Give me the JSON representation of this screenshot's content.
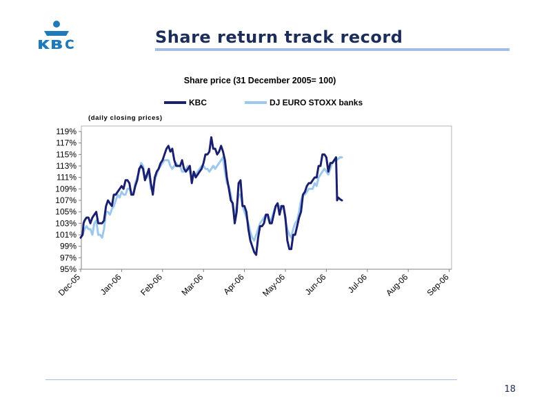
{
  "slide": {
    "title": "Share return track record",
    "page_number": "18",
    "logo_text": "KBC",
    "colors": {
      "title": "#1c2d5a",
      "rule": "#a3bde3",
      "logo": "#1e7ab8"
    }
  },
  "chart_data": {
    "type": "line",
    "title": "Share price (31 December 2005= 100)",
    "subtitle": "(daily closing prices)",
    "xlabel": "",
    "ylabel": "",
    "ylim": [
      95,
      119
    ],
    "y_ticks": [
      "95%",
      "97%",
      "99%",
      "101%",
      "103%",
      "105%",
      "107%",
      "109%",
      "111%",
      "113%",
      "115%",
      "117%",
      "119%"
    ],
    "x_ticks": [
      "Dec-05",
      "Jan-06",
      "Feb-06",
      "Mar-06",
      "Apr-06",
      "May-06",
      "Jun-06",
      "Jul-06",
      "Aug-06",
      "Sep-06"
    ],
    "legend_position": "top",
    "grid": false,
    "series": [
      {
        "name": "KBC",
        "color": "#1a1f6e",
        "points": [
          [
            0,
            100.5
          ],
          [
            1,
            101
          ],
          [
            1.5,
            103
          ],
          [
            2,
            103.5
          ],
          [
            3,
            104
          ],
          [
            4,
            104
          ],
          [
            5,
            103
          ],
          [
            6,
            104
          ],
          [
            7,
            104.5
          ],
          [
            8,
            105
          ],
          [
            9,
            103
          ],
          [
            10,
            103
          ],
          [
            11,
            103
          ],
          [
            12,
            103.5
          ],
          [
            13,
            106
          ],
          [
            14,
            107
          ],
          [
            15,
            106.5
          ],
          [
            16,
            106
          ],
          [
            17,
            108
          ],
          [
            18,
            108
          ],
          [
            19,
            108.5
          ],
          [
            20,
            109
          ],
          [
            21,
            109.5
          ],
          [
            22,
            109
          ],
          [
            23,
            110.5
          ],
          [
            24,
            110.5
          ],
          [
            25,
            110
          ],
          [
            26,
            108
          ],
          [
            27,
            108
          ],
          [
            28,
            109.5
          ],
          [
            29,
            110.5
          ],
          [
            30,
            112.5
          ],
          [
            31,
            113
          ],
          [
            32,
            112.5
          ],
          [
            33,
            110.5
          ],
          [
            34,
            111.5
          ],
          [
            35,
            112.5
          ],
          [
            36,
            110
          ],
          [
            37,
            108
          ],
          [
            38,
            111
          ],
          [
            39,
            112
          ],
          [
            40,
            112.5
          ],
          [
            41,
            113.5
          ],
          [
            42,
            114
          ],
          [
            43,
            115
          ],
          [
            44,
            116
          ],
          [
            45,
            116.5
          ],
          [
            46,
            115.5
          ],
          [
            47,
            116
          ],
          [
            48,
            114
          ],
          [
            49,
            113
          ],
          [
            50,
            113
          ],
          [
            51,
            113
          ],
          [
            52,
            114
          ],
          [
            53,
            112.5
          ],
          [
            54,
            112
          ],
          [
            55,
            112.5
          ],
          [
            56,
            113
          ],
          [
            57,
            110
          ],
          [
            58,
            112
          ],
          [
            59,
            111
          ],
          [
            60,
            111.5
          ],
          [
            61,
            112
          ],
          [
            62,
            112.5
          ],
          [
            63,
            113.5
          ],
          [
            64,
            115
          ],
          [
            65,
            115
          ],
          [
            66,
            115.5
          ],
          [
            67,
            118
          ],
          [
            68,
            116
          ],
          [
            69,
            116
          ],
          [
            70,
            115
          ],
          [
            71,
            115.5
          ],
          [
            72,
            116.5
          ],
          [
            73,
            115.5
          ],
          [
            74,
            114
          ],
          [
            75,
            111
          ],
          [
            76,
            109
          ],
          [
            77,
            107
          ],
          [
            78,
            106.5
          ],
          [
            79,
            103
          ],
          [
            80,
            105
          ],
          [
            81,
            110
          ],
          [
            82,
            110.5
          ],
          [
            83,
            106
          ],
          [
            84,
            106
          ],
          [
            85,
            105
          ],
          [
            86,
            102
          ],
          [
            87,
            100
          ],
          [
            88,
            99
          ],
          [
            89,
            98
          ],
          [
            90,
            97.5
          ],
          [
            91,
            100.5
          ],
          [
            92,
            102.5
          ],
          [
            93,
            102.5
          ],
          [
            94,
            103
          ],
          [
            95,
            104.5
          ],
          [
            96,
            104.5
          ],
          [
            97,
            103
          ],
          [
            98,
            103
          ],
          [
            99,
            104.5
          ],
          [
            100,
            106
          ],
          [
            101,
            106.5
          ],
          [
            102,
            104.5
          ],
          [
            103,
            106
          ],
          [
            104,
            106
          ],
          [
            105,
            104
          ],
          [
            106,
            100
          ],
          [
            107,
            98.5
          ],
          [
            108,
            98.5
          ],
          [
            109,
            101
          ],
          [
            110,
            101
          ],
          [
            111,
            102.5
          ],
          [
            112,
            104
          ],
          [
            113,
            105
          ],
          [
            114,
            108
          ],
          [
            115,
            108.5
          ],
          [
            116,
            109.5
          ],
          [
            117,
            110
          ],
          [
            118,
            110
          ],
          [
            119,
            110.5
          ],
          [
            120,
            111
          ],
          [
            121,
            111
          ],
          [
            122,
            113
          ],
          [
            123,
            113
          ],
          [
            124,
            115
          ],
          [
            125,
            115
          ],
          [
            126,
            114.5
          ],
          [
            127,
            112
          ],
          [
            128,
            113.5
          ],
          [
            129,
            113.5
          ],
          [
            130,
            114
          ],
          [
            131,
            114.5
          ],
          [
            131.5,
            107
          ],
          [
            132,
            107.5
          ],
          [
            133,
            107.2
          ],
          [
            134,
            107
          ]
        ]
      },
      {
        "name": "DJ EURO STOXX banks",
        "color": "#9cc7ee",
        "points": [
          [
            0,
            100.5
          ],
          [
            1,
            101
          ],
          [
            2,
            102
          ],
          [
            3,
            102.5
          ],
          [
            4,
            102
          ],
          [
            5,
            102
          ],
          [
            6,
            101
          ],
          [
            7,
            103
          ],
          [
            8,
            103.5
          ],
          [
            9,
            101
          ],
          [
            10,
            101
          ],
          [
            11,
            100.5
          ],
          [
            12,
            102
          ],
          [
            13,
            105
          ],
          [
            14,
            105
          ],
          [
            15,
            104.5
          ],
          [
            16,
            105.5
          ],
          [
            17,
            106
          ],
          [
            18,
            107
          ],
          [
            19,
            108
          ],
          [
            20,
            107.5
          ],
          [
            21,
            108.5
          ],
          [
            22,
            108
          ],
          [
            23,
            108
          ],
          [
            24,
            109
          ],
          [
            25,
            109
          ],
          [
            26,
            108.5
          ],
          [
            27,
            108
          ],
          [
            28,
            110
          ],
          [
            29,
            111
          ],
          [
            30,
            112
          ],
          [
            31,
            113.5
          ],
          [
            32,
            113
          ],
          [
            33,
            111
          ],
          [
            34,
            111
          ],
          [
            35,
            112
          ],
          [
            36,
            109
          ],
          [
            37,
            109
          ],
          [
            38,
            110.5
          ],
          [
            39,
            111.5
          ],
          [
            40,
            112.5
          ],
          [
            41,
            113
          ],
          [
            42,
            113.5
          ],
          [
            43,
            114
          ],
          [
            44,
            114
          ],
          [
            45,
            114
          ],
          [
            46,
            113
          ],
          [
            47,
            112.5
          ],
          [
            48,
            113
          ],
          [
            49,
            113.5
          ],
          [
            50,
            113
          ],
          [
            51,
            113
          ],
          [
            52,
            112
          ],
          [
            53,
            112
          ],
          [
            54,
            112.5
          ],
          [
            55,
            113
          ],
          [
            56,
            112
          ],
          [
            57,
            111
          ],
          [
            58,
            111.5
          ],
          [
            59,
            111.5
          ],
          [
            60,
            112
          ],
          [
            61,
            112.5
          ],
          [
            62,
            113
          ],
          [
            63,
            113
          ],
          [
            64,
            112.5
          ],
          [
            65,
            112.5
          ],
          [
            66,
            112
          ],
          [
            67,
            112.5
          ],
          [
            68,
            113
          ],
          [
            69,
            112.5
          ],
          [
            70,
            113
          ],
          [
            71,
            113.5
          ],
          [
            72,
            114
          ],
          [
            73,
            114.5
          ],
          [
            74,
            112
          ],
          [
            75,
            110
          ],
          [
            76,
            109.5
          ],
          [
            77,
            108
          ],
          [
            78,
            106
          ],
          [
            79,
            104.5
          ],
          [
            80,
            106
          ],
          [
            81,
            108
          ],
          [
            82,
            108
          ],
          [
            83,
            106
          ],
          [
            84,
            105
          ],
          [
            85,
            104
          ],
          [
            86,
            103
          ],
          [
            87,
            101.5
          ],
          [
            88,
            100.5
          ],
          [
            89,
            100
          ],
          [
            90,
            101
          ],
          [
            91,
            102
          ],
          [
            92,
            103
          ],
          [
            93,
            103.5
          ],
          [
            94,
            104
          ],
          [
            95,
            104.5
          ],
          [
            96,
            104
          ],
          [
            97,
            103
          ],
          [
            98,
            104
          ],
          [
            99,
            105
          ],
          [
            100,
            106
          ],
          [
            101,
            106
          ],
          [
            102,
            106
          ],
          [
            103,
            105.5
          ],
          [
            104,
            106
          ],
          [
            105,
            103.5
          ],
          [
            106,
            102
          ],
          [
            107,
            101
          ],
          [
            108,
            100.5
          ],
          [
            109,
            102
          ],
          [
            110,
            103
          ],
          [
            111,
            103.5
          ],
          [
            112,
            105
          ],
          [
            113,
            107
          ],
          [
            114,
            108
          ],
          [
            115,
            108
          ],
          [
            116,
            108.5
          ],
          [
            117,
            109
          ],
          [
            118,
            109
          ],
          [
            119,
            109
          ],
          [
            120,
            110
          ],
          [
            121,
            109.5
          ],
          [
            122,
            111
          ],
          [
            123,
            111.5
          ],
          [
            124,
            112
          ],
          [
            125,
            112.5
          ],
          [
            126,
            112
          ],
          [
            127,
            111.5
          ],
          [
            128,
            112.5
          ],
          [
            129,
            113.5
          ],
          [
            130,
            113.8
          ],
          [
            131,
            114
          ],
          [
            132,
            114.2
          ],
          [
            133,
            114.5
          ],
          [
            134,
            114.5
          ]
        ]
      }
    ]
  }
}
